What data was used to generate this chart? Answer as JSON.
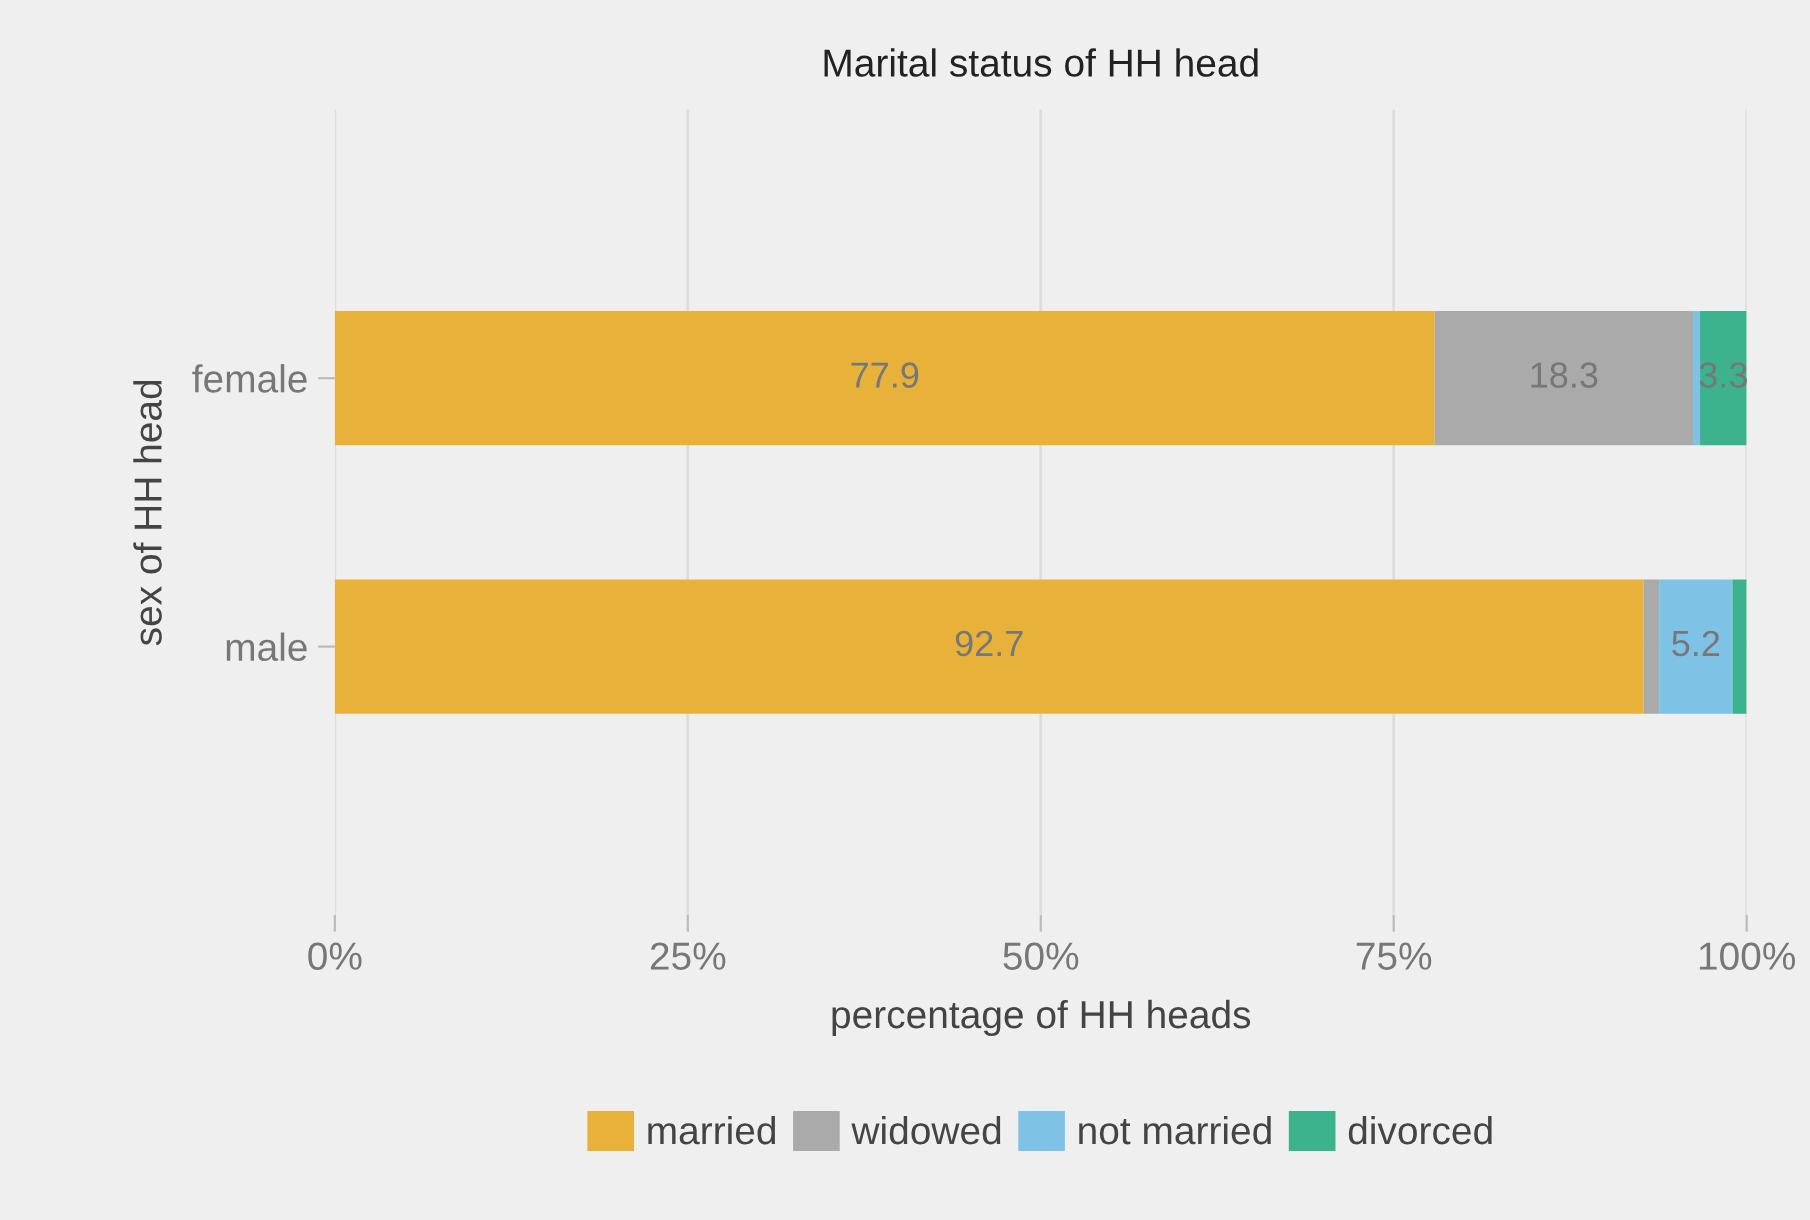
{
  "chart_data": {
    "type": "bar",
    "orientation": "horizontal",
    "stacked": true,
    "title": "Marital status of HH head",
    "xlabel": "percentage of HH heads",
    "ylabel": "sex of HH head",
    "categories": [
      "female",
      "male"
    ],
    "series": [
      {
        "name": "married",
        "color": "#e8b23a",
        "values": [
          77.9,
          92.7
        ],
        "value_labels": [
          "77.9",
          "92.7"
        ]
      },
      {
        "name": "widowed",
        "color": "#aaaaaa",
        "values": [
          18.3,
          1.1
        ],
        "value_labels": [
          "18.3",
          null
        ]
      },
      {
        "name": "not married",
        "color": "#7ec3e6",
        "values": [
          0.5,
          5.2
        ],
        "value_labels": [
          null,
          "5.2"
        ]
      },
      {
        "name": "divorced",
        "color": "#3cb38c",
        "values": [
          3.3,
          1.0
        ],
        "value_labels": [
          "3.3",
          null
        ]
      }
    ],
    "xlim": [
      0,
      100
    ],
    "xticks": [
      {
        "value": 0,
        "label": "0%"
      },
      {
        "value": 25,
        "label": "25%"
      },
      {
        "value": 50,
        "label": "50%"
      },
      {
        "value": 75,
        "label": "75%"
      },
      {
        "value": 100,
        "label": "100%"
      }
    ],
    "grid": true,
    "legend": "bottom"
  }
}
